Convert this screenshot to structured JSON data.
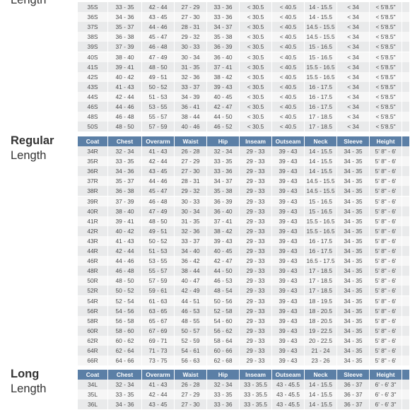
{
  "columns": [
    "Coat",
    "Chest",
    "Overarm",
    "Waist",
    "Hip",
    "Inseam",
    "Outseam",
    "Neck",
    "Sleeve",
    "Height"
  ],
  "sections": [
    {
      "label_lines": [
        "Length"
      ],
      "rows": [
        [
          "35S",
          "33 - 35",
          "42 - 44",
          "27 - 29",
          "33 - 36",
          "< 30.5",
          "< 40.5",
          "14 - 15.5",
          "< 34",
          "< 5'8.5\""
        ],
        [
          "36S",
          "34 - 36",
          "43 - 45",
          "27 - 30",
          "33 - 36",
          "< 30.5",
          "< 40.5",
          "14 - 15.5",
          "< 34",
          "< 5'8.5\""
        ],
        [
          "37S",
          "35 - 37",
          "44 - 46",
          "28 - 31",
          "34 - 37",
          "< 30.5",
          "< 40.5",
          "14.5 - 15.5",
          "< 34",
          "< 5'8.5\""
        ],
        [
          "38S",
          "36 - 38",
          "45 - 47",
          "29 - 32",
          "35 - 38",
          "< 30.5",
          "< 40.5",
          "14.5 - 15.5",
          "< 34",
          "< 5'8.5\""
        ],
        [
          "39S",
          "37 - 39",
          "46 - 48",
          "30 - 33",
          "36 - 39",
          "< 30.5",
          "< 40.5",
          "15 - 16.5",
          "< 34",
          "< 5'8.5\""
        ],
        [
          "40S",
          "38 - 40",
          "47 - 49",
          "30 - 34",
          "36 - 40",
          "< 30.5",
          "< 40.5",
          "15 - 16.5",
          "< 34",
          "< 5'8.5\""
        ],
        [
          "41S",
          "39 - 41",
          "48 - 50",
          "31 - 35",
          "37 - 41",
          "< 30.5",
          "< 40.5",
          "15.5 - 16.5",
          "< 34",
          "< 5'8.5\""
        ],
        [
          "42S",
          "40 - 42",
          "49 - 51",
          "32 - 36",
          "38 - 42",
          "< 30.5",
          "< 40.5",
          "15.5 - 16.5",
          "< 34",
          "< 5'8.5\""
        ],
        [
          "43S",
          "41 - 43",
          "50 - 52",
          "33 - 37",
          "39 - 43",
          "< 30.5",
          "< 40.5",
          "16 - 17.5",
          "< 34",
          "< 5'8.5\""
        ],
        [
          "44S",
          "42 - 44",
          "51 - 53",
          "34 - 39",
          "40 - 45",
          "< 30.5",
          "< 40.5",
          "16 - 17.5",
          "< 34",
          "< 5'8.5\""
        ],
        [
          "46S",
          "44 - 46",
          "53 - 55",
          "36 - 41",
          "42 - 47",
          "< 30.5",
          "< 40.5",
          "16 - 17.5",
          "< 34",
          "< 5'8.5\""
        ],
        [
          "48S",
          "46 - 48",
          "55 - 57",
          "38 - 44",
          "44 - 50",
          "< 30.5",
          "< 40.5",
          "17 - 18.5",
          "< 34",
          "< 5'8.5\""
        ],
        [
          "50S",
          "48 - 50",
          "57 - 59",
          "40 - 46",
          "46 - 52",
          "< 30.5",
          "< 40.5",
          "17 - 18.5",
          "< 34",
          "< 5'8.5\""
        ]
      ]
    },
    {
      "label_lines": [
        "Regular",
        "Length"
      ],
      "rows": [
        [
          "34R",
          "32 - 34",
          "41 - 43",
          "26 - 28",
          "32 - 34",
          "29 - 33",
          "39 - 43",
          "14 - 15.5",
          "34 - 35",
          "5' 8\" - 6'"
        ],
        [
          "35R",
          "33 - 35",
          "42 - 44",
          "27 - 29",
          "33 - 35",
          "29 - 33",
          "39 - 43",
          "14 - 15.5",
          "34 - 35",
          "5' 8\" - 6'"
        ],
        [
          "36R",
          "34 - 36",
          "43 - 45",
          "27 - 30",
          "33 - 36",
          "29 - 33",
          "39 - 43",
          "14 - 15.5",
          "34 - 35",
          "5' 8\" - 6'"
        ],
        [
          "37R",
          "35 - 37",
          "44 - 46",
          "28 - 31",
          "34 - 37",
          "29 - 33",
          "39 - 43",
          "14.5 - 15.5",
          "34 - 35",
          "5' 8\" - 6'"
        ],
        [
          "38R",
          "36 - 38",
          "45 - 47",
          "29 - 32",
          "35 - 38",
          "29 - 33",
          "39 - 43",
          "14.5 - 15.5",
          "34 - 35",
          "5' 8\" - 6'"
        ],
        [
          "39R",
          "37 - 39",
          "46 - 48",
          "30 - 33",
          "36 - 39",
          "29 - 33",
          "39 - 43",
          "15 - 16.5",
          "34 - 35",
          "5' 8\" - 6'"
        ],
        [
          "40R",
          "38 - 40",
          "47 - 49",
          "30 - 34",
          "36 - 40",
          "29 - 33",
          "39 - 43",
          "15 - 16.5",
          "34 - 35",
          "5' 8\" - 6'"
        ],
        [
          "41R",
          "39 - 41",
          "48 - 50",
          "31 - 35",
          "37 - 41",
          "29 - 33",
          "39 - 43",
          "15.5 - 16.5",
          "34 - 35",
          "5' 8\" - 6'"
        ],
        [
          "42R",
          "40 - 42",
          "49 - 51",
          "32 - 36",
          "38 - 42",
          "29 - 33",
          "39 - 43",
          "15.5 - 16.5",
          "34 - 35",
          "5' 8\" - 6'"
        ],
        [
          "43R",
          "41 - 43",
          "50 - 52",
          "33 - 37",
          "39 - 43",
          "29 - 33",
          "39 - 43",
          "16 - 17.5",
          "34 - 35",
          "5' 8\" - 6'"
        ],
        [
          "44R",
          "42 - 44",
          "51 - 53",
          "34 - 40",
          "40 - 45",
          "29 - 33",
          "39 - 43",
          "16 - 17.5",
          "34 - 35",
          "5' 8\" - 6'"
        ],
        [
          "46R",
          "44 - 46",
          "53 - 55",
          "36 - 42",
          "42 - 47",
          "29 - 33",
          "39 - 43",
          "16.5 - 17.5",
          "34 - 35",
          "5' 8\" - 6'"
        ],
        [
          "48R",
          "46 - 48",
          "55 - 57",
          "38 - 44",
          "44 - 50",
          "29 - 33",
          "39 - 43",
          "17 - 18.5",
          "34 - 35",
          "5' 8\" - 6'"
        ],
        [
          "50R",
          "48 - 50",
          "57 - 59",
          "40 - 47",
          "46 - 53",
          "29 - 33",
          "39 - 43",
          "17 - 18.5",
          "34 - 35",
          "5' 8\" - 6'"
        ],
        [
          "52R",
          "50 - 52",
          "59 - 61",
          "42 - 49",
          "48 - 54",
          "29 - 33",
          "39 - 43",
          "17 - 18.5",
          "34 - 35",
          "5' 8\" - 6'"
        ],
        [
          "54R",
          "52 - 54",
          "61 - 63",
          "44 - 51",
          "50 - 56",
          "29 - 33",
          "39 - 43",
          "18 - 19.5",
          "34 - 35",
          "5' 8\" - 6'"
        ],
        [
          "56R",
          "54 - 56",
          "63 - 65",
          "46 - 53",
          "52 - 58",
          "29 - 33",
          "39 - 43",
          "18 - 20.5",
          "34 - 35",
          "5' 8\" - 6'"
        ],
        [
          "58R",
          "56 - 58",
          "65 - 67",
          "48 - 55",
          "54 - 60",
          "29 - 33",
          "39 - 43",
          "18 - 20.5",
          "34 - 35",
          "5' 8\" - 6'"
        ],
        [
          "60R",
          "58 - 60",
          "67 - 69",
          "50 - 57",
          "56 - 62",
          "29 - 33",
          "39 - 43",
          "19 - 22.5",
          "34 - 35",
          "5' 8\" - 6'"
        ],
        [
          "62R",
          "60 - 62",
          "69 - 71",
          "52 - 59",
          "58 - 64",
          "29 - 33",
          "39 - 43",
          "20 - 22.5",
          "34 - 35",
          "5' 8\" - 6'"
        ],
        [
          "64R",
          "62 - 64",
          "71 - 73",
          "54 - 61",
          "60 - 66",
          "29 - 33",
          "39 - 43",
          "21 - 24",
          "34 - 35",
          "5' 8\" - 6'"
        ],
        [
          "66R",
          "64 - 66",
          "73 - 75",
          "56 - 63",
          "62 - 68",
          "29 - 33",
          "39 - 43",
          "23 - 26",
          "34 - 35",
          "5' 8\" - 6'"
        ]
      ]
    },
    {
      "label_lines": [
        "Long",
        "Length"
      ],
      "rows": [
        [
          "34L",
          "32 - 34",
          "41 - 43",
          "26 - 28",
          "32 - 34",
          "33 - 35.5",
          "43 - 45.5",
          "14 - 15.5",
          "36 - 37",
          "6' - 6' 3\""
        ],
        [
          "35L",
          "33 - 35",
          "42 - 44",
          "27 - 29",
          "33 - 35",
          "33 - 35.5",
          "43 - 45.5",
          "14 - 15.5",
          "36 - 37",
          "6' - 6' 3\""
        ],
        [
          "36L",
          "34 - 36",
          "43 - 45",
          "27 - 30",
          "33 - 36",
          "33 - 35.5",
          "43 - 45.5",
          "14 - 15.5",
          "36 - 37",
          "6' - 6' 3\""
        ]
      ]
    }
  ]
}
